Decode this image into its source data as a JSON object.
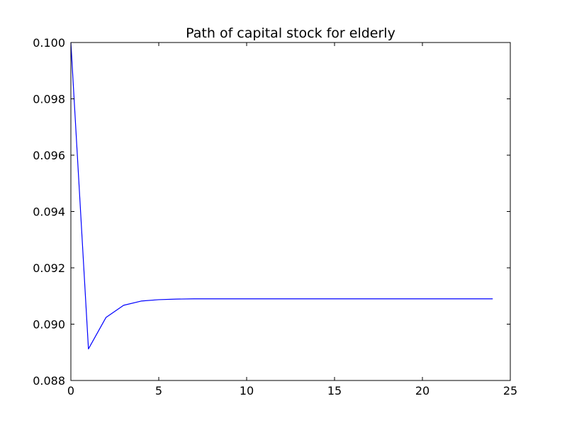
{
  "chart_data": {
    "type": "line",
    "title": "Path of capital stock for elderly",
    "xlabel": "",
    "ylabel": "",
    "xlim": [
      0,
      25
    ],
    "ylim": [
      0.088,
      0.1
    ],
    "xticks": [
      0,
      5,
      10,
      15,
      20,
      25
    ],
    "xtick_labels": [
      "0",
      "5",
      "10",
      "15",
      "20",
      "25"
    ],
    "yticks": [
      0.088,
      0.09,
      0.092,
      0.094,
      0.096,
      0.098,
      0.1
    ],
    "ytick_labels": [
      "0.088",
      "0.090",
      "0.092",
      "0.094",
      "0.096",
      "0.098",
      "0.100"
    ],
    "grid": false,
    "legend": "none",
    "series": [
      {
        "color": "#0000ff",
        "x": [
          0,
          1,
          2,
          3,
          4,
          5,
          6,
          7,
          8,
          9,
          10,
          11,
          12,
          13,
          14,
          15,
          16,
          17,
          18,
          19,
          20,
          21,
          22,
          23,
          24
        ],
        "values": [
          0.1,
          0.08912,
          0.09024,
          0.09067,
          0.09082,
          0.09087,
          0.09089,
          0.0909,
          0.0909,
          0.0909,
          0.0909,
          0.0909,
          0.0909,
          0.0909,
          0.0909,
          0.0909,
          0.0909,
          0.0909,
          0.0909,
          0.0909,
          0.0909,
          0.0909,
          0.0909,
          0.0909,
          0.0909
        ]
      }
    ]
  }
}
